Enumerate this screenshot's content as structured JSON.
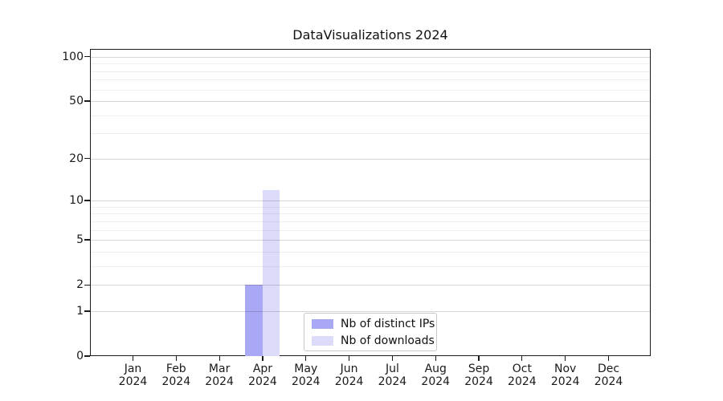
{
  "title": "DataVisualizations 2024",
  "chart_data": {
    "type": "bar",
    "title": "DataVisualizations 2024",
    "categories": [
      "Jan",
      "Feb",
      "Mar",
      "Apr",
      "May",
      "Jun",
      "Jul",
      "Aug",
      "Sep",
      "Oct",
      "Nov",
      "Dec"
    ],
    "category_year": "2024",
    "series": [
      {
        "name": "Nb of distinct IPs",
        "color": "#a8a8f5",
        "values": [
          0,
          0,
          0,
          2,
          0,
          0,
          0,
          0,
          0,
          0,
          0,
          0
        ]
      },
      {
        "name": "Nb of downloads",
        "color": "#dcdcfa",
        "values": [
          0,
          0,
          0,
          12,
          0,
          0,
          0,
          0,
          0,
          0,
          0,
          0
        ]
      }
    ],
    "yscale": "log1p",
    "ylim": [
      0,
      112.9
    ],
    "yticks": [
      0,
      1,
      2,
      5,
      10,
      20,
      50,
      100
    ],
    "minor_yticks": [
      3,
      4,
      6,
      7,
      8,
      9,
      30,
      40,
      60,
      70,
      80,
      90
    ],
    "grid": "horizontal-major-and-minor",
    "legend": {
      "position": "inside-bottom-center"
    }
  }
}
